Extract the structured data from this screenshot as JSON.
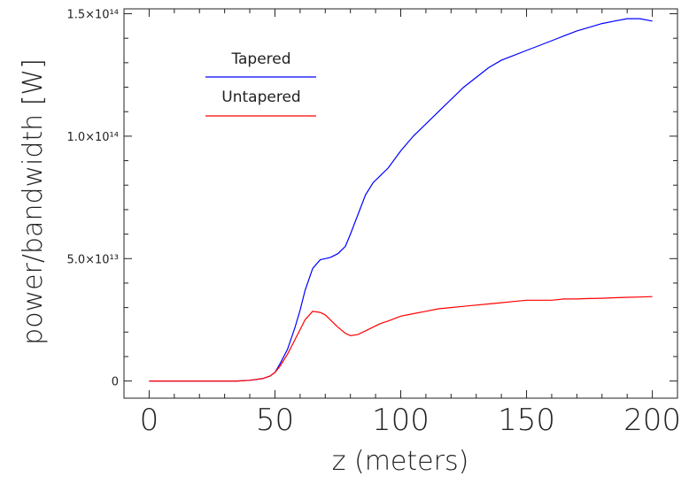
{
  "chart_data": {
    "type": "line",
    "title": "",
    "xlabel": "z (meters)",
    "ylabel": "power/bandwidth [W]",
    "xlim": [
      -10,
      210
    ],
    "ylim": [
      -7000000000000.0,
      152000000000000.0
    ],
    "x_ticks": [
      0,
      50,
      100,
      150,
      200
    ],
    "x_tick_labels": [
      "0",
      "50",
      "100",
      "150",
      "200"
    ],
    "y_ticks": [
      0,
      50000000000000.0,
      100000000000000.0,
      150000000000000.0
    ],
    "y_tick_labels": [
      "0",
      "5.0×10¹³",
      "1.0×10¹⁴",
      "1.5×10¹⁴"
    ],
    "grid": false,
    "legend_position": "top-left",
    "series": [
      {
        "name": "Tapered",
        "color": "#0000ff",
        "x": [
          0,
          10,
          20,
          30,
          35,
          40,
          45,
          48,
          50,
          52,
          55,
          58,
          60,
          62,
          65,
          68,
          70,
          72,
          75,
          78,
          80,
          83,
          86,
          89,
          92,
          95,
          100,
          105,
          110,
          115,
          120,
          125,
          130,
          135,
          140,
          145,
          150,
          155,
          160,
          165,
          170,
          175,
          180,
          185,
          190,
          195,
          200
        ],
        "y": [
          0,
          0,
          0,
          0,
          0,
          300000000000.0,
          1000000000000.0,
          2000000000000.0,
          3500000000000.0,
          7000000000000.0,
          13000000000000.0,
          22000000000000.0,
          29000000000000.0,
          37000000000000.0,
          46000000000000.0,
          49500000000000.0,
          50000000000000.0,
          50500000000000.0,
          52000000000000.0,
          55000000000000.0,
          60000000000000.0,
          68000000000000.0,
          76000000000000.0,
          81000000000000.0,
          84000000000000.0,
          87000000000000.0,
          94000000000000.0,
          100000000000000.0,
          105000000000000.0,
          110000000000000.0,
          115000000000000.0,
          120000000000000.0,
          124000000000000.0,
          128000000000000.0,
          131000000000000.0,
          133000000000000.0,
          135000000000000.0,
          137000000000000.0,
          139000000000000.0,
          141000000000000.0,
          143000000000000.0,
          144500000000000.0,
          146000000000000.0,
          147000000000000.0,
          148000000000000.0,
          148000000000000.0,
          147000000000000.0
        ]
      },
      {
        "name": "Untapered",
        "color": "#ff0000",
        "x": [
          0,
          10,
          20,
          30,
          35,
          40,
          45,
          48,
          50,
          52,
          55,
          58,
          60,
          62,
          65,
          68,
          70,
          72,
          75,
          78,
          80,
          83,
          86,
          89,
          92,
          95,
          100,
          105,
          110,
          115,
          120,
          125,
          130,
          135,
          140,
          145,
          150,
          155,
          160,
          165,
          170,
          175,
          180,
          185,
          190,
          195,
          200
        ],
        "y": [
          0,
          0,
          0,
          0,
          0,
          300000000000.0,
          1000000000000.0,
          2000000000000.0,
          3500000000000.0,
          6000000000000.0,
          11000000000000.0,
          17000000000000.0,
          21000000000000.0,
          25000000000000.0,
          28500000000000.0,
          28000000000000.0,
          27000000000000.0,
          25000000000000.0,
          22000000000000.0,
          19500000000000.0,
          18500000000000.0,
          19000000000000.0,
          20500000000000.0,
          22000000000000.0,
          23500000000000.0,
          24500000000000.0,
          26500000000000.0,
          27500000000000.0,
          28500000000000.0,
          29500000000000.0,
          30000000000000.0,
          30500000000000.0,
          31000000000000.0,
          31500000000000.0,
          32000000000000.0,
          32500000000000.0,
          33000000000000.0,
          33000000000000.0,
          33000000000000.0,
          33500000000000.0,
          33500000000000.0,
          33700000000000.0,
          33800000000000.0,
          34000000000000.0,
          34200000000000.0,
          34300000000000.0,
          34500000000000.0
        ]
      }
    ]
  }
}
